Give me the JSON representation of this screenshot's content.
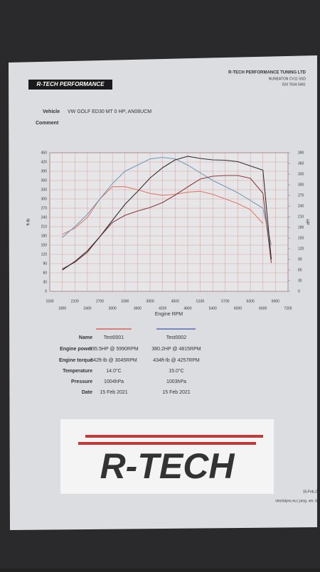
{
  "header": {
    "logo": "R-TECH PERFORMANCE",
    "company": "R-TECH PERFORMANCE TUNING LTD",
    "address": "NUNEATON CV11 5SD",
    "phone": "024 7634 5491"
  },
  "vehicle": {
    "label": "Vehicle",
    "value": "VW GOLF ED30 MT 0 HP; AN08UCM"
  },
  "comment": {
    "label": "Comment"
  },
  "chart_data": {
    "type": "line",
    "xlabel": "Engine RPM",
    "ylabel": "ft-lb",
    "y2label": "HP",
    "grid": true,
    "x": [
      1800,
      2100,
      2400,
      2700,
      3000,
      3300,
      3600,
      3900,
      4200,
      4500,
      4800,
      5100,
      5400,
      5700,
      6000,
      6300,
      6600,
      6800
    ],
    "xlim": [
      1500,
      7200
    ],
    "xticks": [
      1500,
      1800,
      2100,
      2400,
      2700,
      3000,
      3300,
      3600,
      3900,
      4200,
      4500,
      4800,
      5100,
      5400,
      5700,
      6000,
      6300,
      6600,
      6900,
      7200
    ],
    "ylim": [
      0,
      450
    ],
    "yticks": [
      0,
      30,
      60,
      90,
      120,
      150,
      180,
      210,
      240,
      270,
      300,
      330,
      360,
      390,
      420,
      450
    ],
    "y2lim": [
      0,
      390
    ],
    "y2ticks": [
      0,
      30,
      60,
      90,
      120,
      150,
      180,
      210,
      240,
      270,
      300,
      330,
      360,
      390
    ],
    "series": [
      {
        "color": "#e07a6a",
        "values": [
          185,
          205,
          240,
          300,
          340,
          340,
          330,
          318,
          312,
          315,
          322,
          325,
          315,
          300,
          285,
          265,
          220,
          null
        ]
      },
      {
        "color": "#6f9cbc",
        "values": [
          175,
          210,
          250,
          300,
          350,
          390,
          410,
          430,
          435,
          430,
          410,
          385,
          360,
          340,
          320,
          295,
          270,
          150
        ]
      },
      {
        "color": "#8b3b3b",
        "axis": "y2",
        "values": [
          63,
          82,
          110,
          154,
          194,
          214,
          226,
          236,
          250,
          271,
          294,
          316,
          324,
          326,
          326,
          318,
          276,
          80
        ]
      },
      {
        "color": "#2f2f35",
        "axis": "y2",
        "values": [
          60,
          84,
          114,
          154,
          200,
          245,
          281,
          319,
          348,
          370,
          380,
          374,
          370,
          369,
          365,
          353,
          341,
          90
        ]
      }
    ]
  },
  "table": {
    "colors": [
      "#d94545",
      "#3a55a8"
    ],
    "rows": [
      [
        "Name",
        "Test0001",
        "Test0002"
      ],
      [
        "Engine power",
        "335.5HP @ 5990RPM",
        "380.2HP @ 4815RPM"
      ],
      [
        "Engine torque",
        "342ft-lb @ 3045RPM",
        "434ft-lb @ 4257RPM"
      ],
      [
        "Temperature",
        "14.0°C",
        "15.0°C"
      ],
      [
        "Pressure",
        "1004hPa",
        "1003hPa"
      ],
      [
        "Date",
        "15 Feb 2021",
        "15 Feb 2021"
      ]
    ]
  },
  "logo": "R-TECH",
  "footer": {
    "date": "15-Feb-2",
    "site": "vtechdyno.eu | prog. ver. 6"
  }
}
